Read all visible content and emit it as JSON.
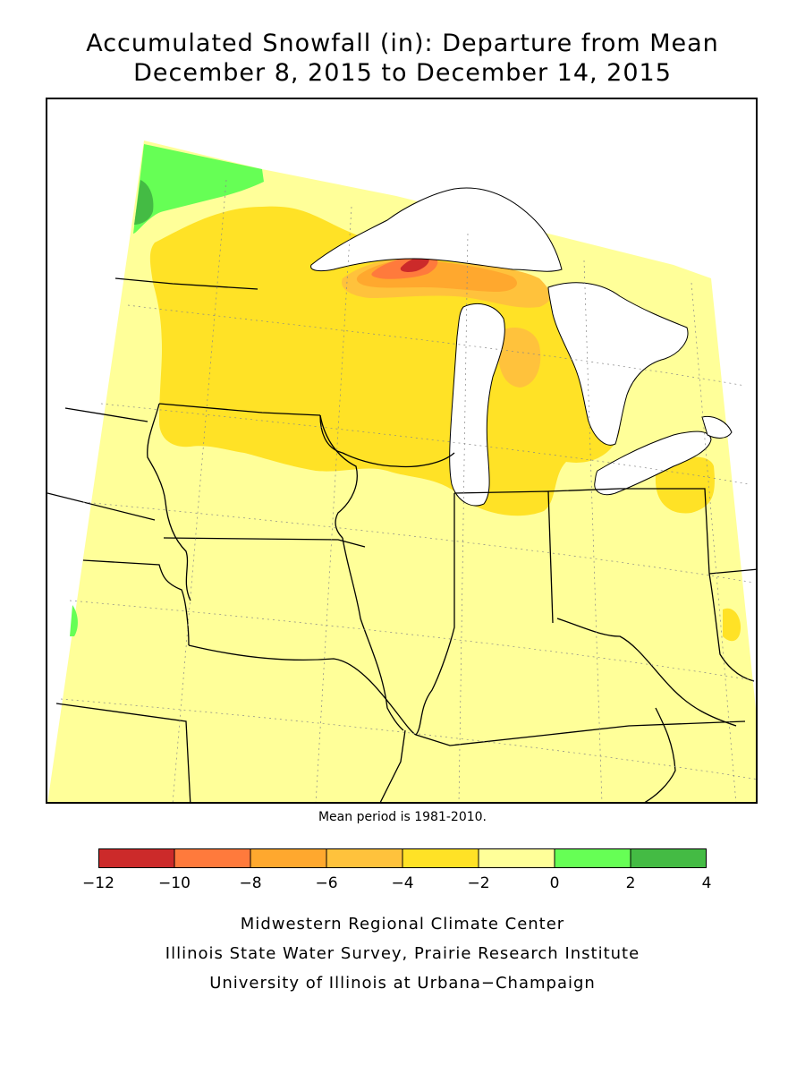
{
  "title_line1": "Accumulated Snowfall (in): Departure from Mean",
  "title_line2": "December 8, 2015 to December 14, 2015",
  "mean_note": "Mean period is 1981-2010.",
  "legend": {
    "bins": [
      {
        "from": -12,
        "to": -10,
        "color": "#cc2a2a"
      },
      {
        "from": -10,
        "to": -8,
        "color": "#ff7a3c"
      },
      {
        "from": -8,
        "to": -6,
        "color": "#ffa82e"
      },
      {
        "from": -6,
        "to": -4,
        "color": "#ffc23c"
      },
      {
        "from": -4,
        "to": -2,
        "color": "#ffe226"
      },
      {
        "from": -2,
        "to": 0,
        "color": "#ffff99"
      },
      {
        "from": 0,
        "to": 2,
        "color": "#66ff55"
      },
      {
        "from": 2,
        "to": 4,
        "color": "#44bb44"
      }
    ],
    "tick_labels": [
      "−12",
      "−10",
      "−8",
      "−6",
      "−4",
      "−2",
      "0",
      "2",
      "4"
    ]
  },
  "credits": {
    "line1": "Midwestern Regional Climate Center",
    "line2": "Illinois State Water Survey, Prairie Research Institute",
    "line3": "University of Illinois at Urbana−Champaign"
  },
  "colors": {
    "background_fill": "#ffff99",
    "lake_fill": "#ffffff",
    "border_line": "#000000"
  }
}
